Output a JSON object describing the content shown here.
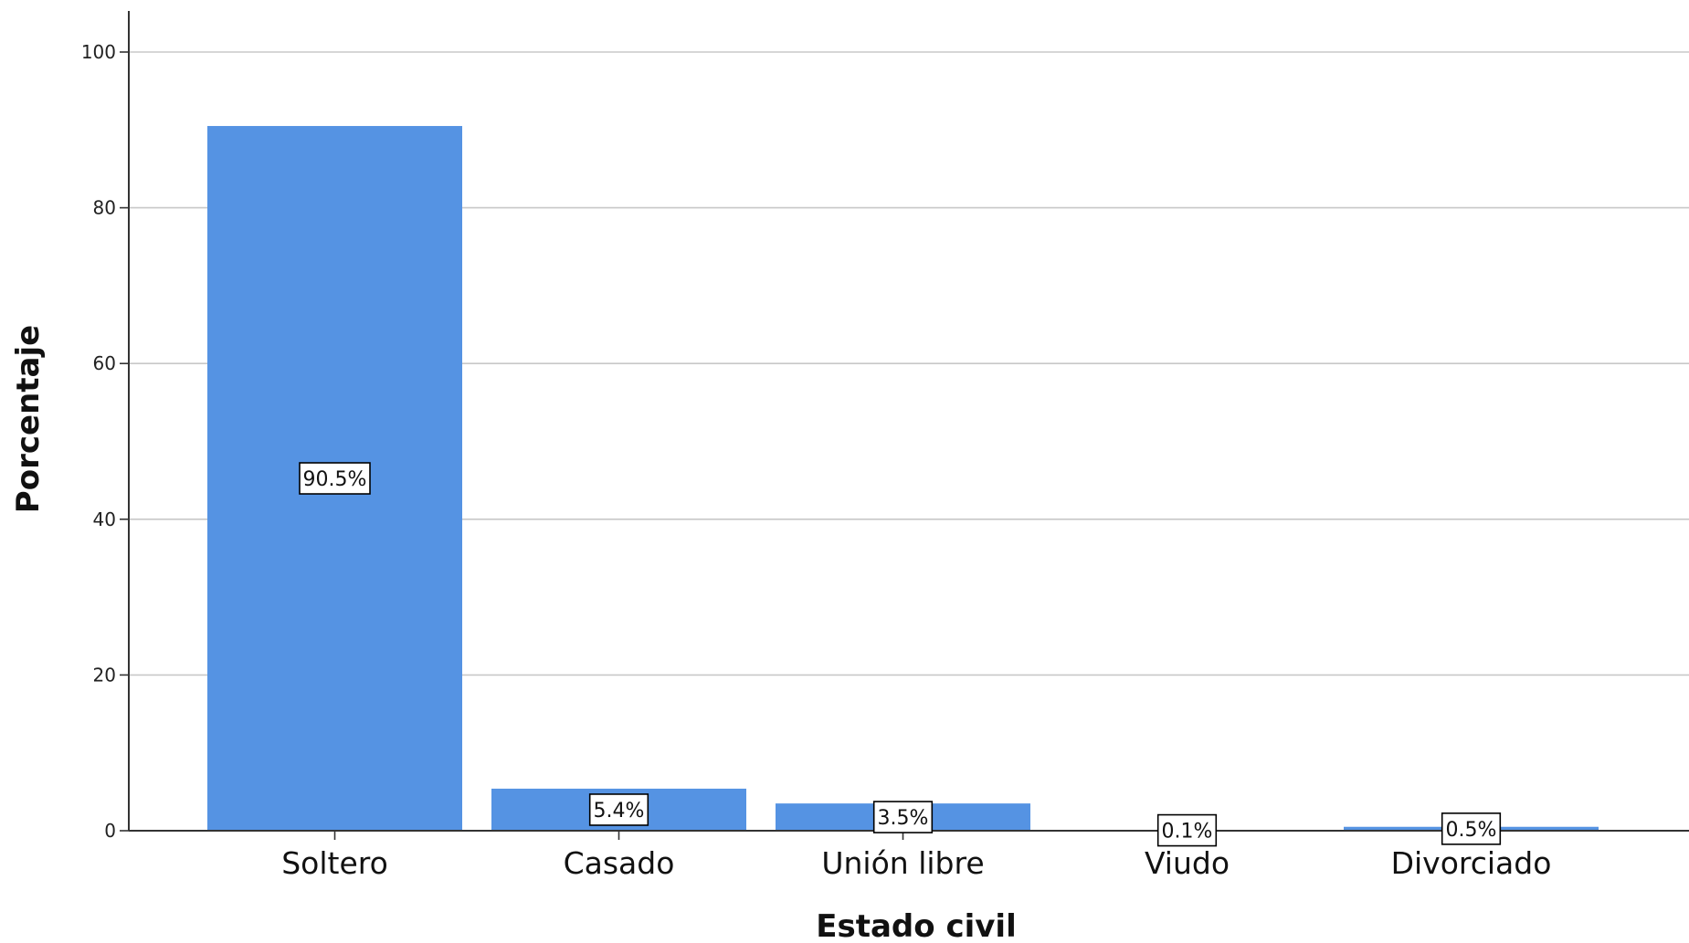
{
  "chart_data": {
    "type": "bar",
    "categories": [
      "Soltero",
      "Casado",
      "Unión libre",
      "Viudo",
      "Divorciado"
    ],
    "values": [
      90.5,
      5.4,
      3.5,
      0.1,
      0.5
    ],
    "data_labels": [
      "90.5%",
      "5.4%",
      "3.5%",
      "0.1%",
      "0.5%"
    ],
    "title": "",
    "xlabel": "Estado civil",
    "ylabel": "Porcentaje",
    "ylim": [
      0,
      100
    ],
    "yticks": [
      0,
      20,
      40,
      60,
      80,
      100
    ],
    "ytick_labels": [
      "0",
      "20",
      "40",
      "60",
      "80",
      "100"
    ],
    "grid": true,
    "bar_color": "#5593e3",
    "legend": "none"
  }
}
